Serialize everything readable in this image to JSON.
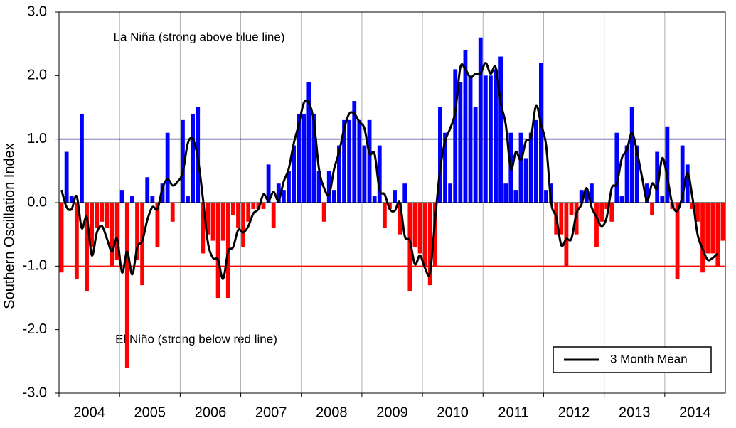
{
  "chart_data": {
    "type": "bar",
    "y_label": "Southern Oscillation Index",
    "annotations": [
      "La Niña (strong above blue line)",
      "El Niño (strong below red line)"
    ],
    "xlim": [
      2004,
      2015
    ],
    "xticks": [
      2004,
      2005,
      2006,
      2007,
      2008,
      2009,
      2010,
      2011,
      2012,
      2013,
      2014
    ],
    "ylim": [
      -3,
      3
    ],
    "yticks": [
      {
        "value": -3,
        "label": "-3.0"
      },
      {
        "value": -2,
        "label": "-2.0"
      },
      {
        "value": -1,
        "label": "-1.0"
      },
      {
        "value": 0,
        "label": "0.0"
      },
      {
        "value": 1,
        "label": "1.0"
      },
      {
        "value": 2,
        "label": "2.0"
      },
      {
        "value": 3,
        "label": "3.0"
      }
    ],
    "grid": true,
    "positive_color": "#0000ff",
    "negative_color": "#ff0000",
    "reference_lines": [
      {
        "value": 1,
        "color": "#00008b"
      },
      {
        "value": -1,
        "color": "#ff0000"
      }
    ],
    "values": [
      -1.1,
      0.8,
      0.1,
      -1.2,
      1.4,
      -1.4,
      -0.7,
      -0.4,
      -0.3,
      -0.4,
      -1.0,
      -0.9,
      0.2,
      -2.6,
      0.1,
      -0.9,
      -1.3,
      0.4,
      0.1,
      -0.7,
      0.3,
      1.1,
      -0.3,
      0.0,
      1.3,
      0.1,
      1.4,
      1.5,
      -0.8,
      -0.5,
      -0.6,
      -1.5,
      -0.6,
      -1.5,
      -0.2,
      -0.4,
      -0.7,
      -0.3,
      -0.1,
      -0.1,
      -0.1,
      0.6,
      -0.4,
      0.3,
      0.2,
      0.5,
      0.9,
      1.4,
      1.4,
      1.9,
      1.4,
      0.5,
      -0.3,
      0.5,
      0.2,
      0.9,
      1.3,
      1.3,
      1.6,
      1.3,
      0.9,
      1.3,
      0.1,
      0.9,
      -0.4,
      -0.1,
      0.2,
      -0.5,
      0.3,
      -1.4,
      -0.7,
      -0.8,
      -1.0,
      -1.3,
      -1.0,
      1.5,
      1.1,
      0.3,
      2.1,
      1.9,
      2.4,
      2.0,
      1.5,
      2.6,
      2.0,
      2.0,
      2.1,
      2.3,
      0.3,
      1.1,
      0.2,
      1.1,
      0.7,
      1.1,
      1.3,
      2.2,
      0.2,
      0.3,
      -0.5,
      -0.5,
      -1.0,
      -0.2,
      -0.5,
      0.2,
      0.2,
      0.3,
      -0.7,
      -0.3,
      -0.1,
      -0.3,
      1.1,
      0.1,
      0.9,
      1.5,
      0.9,
      0.0,
      0.3,
      -0.2,
      0.8,
      0.1,
      1.2,
      -0.1,
      -1.2,
      0.9,
      0.6,
      -0.1,
      -0.3,
      -1.1,
      -0.8,
      -0.8,
      -1.0,
      -0.6
    ],
    "series": [
      {
        "name": "3 Month Mean",
        "type": "line",
        "color": "#000000",
        "values": [
          0.2,
          -0.07,
          -0.1,
          0.1,
          -0.4,
          -0.23,
          -0.83,
          -0.47,
          -0.37,
          -0.57,
          -0.77,
          -0.57,
          -1.1,
          -0.77,
          -1.13,
          -0.7,
          -0.6,
          -0.27,
          -0.07,
          -0.1,
          0.23,
          0.37,
          0.27,
          0.33,
          0.47,
          0.93,
          1.0,
          0.7,
          0.07,
          -0.63,
          -0.87,
          -0.9,
          -1.2,
          -0.77,
          -0.7,
          -0.43,
          -0.47,
          -0.37,
          -0.17,
          -0.1,
          0.13,
          0.03,
          0.17,
          0.03,
          0.33,
          0.53,
          0.93,
          1.23,
          1.57,
          1.57,
          1.27,
          0.53,
          0.23,
          0.13,
          0.53,
          0.8,
          1.17,
          1.4,
          1.4,
          1.27,
          1.17,
          0.77,
          0.77,
          0.2,
          0.13,
          -0.1,
          -0.13,
          0.0,
          -0.53,
          -0.6,
          -0.97,
          -0.83,
          -1.03,
          -1.1,
          -0.27,
          0.53,
          0.97,
          1.17,
          1.43,
          2.13,
          2.1,
          1.97,
          2.03,
          2.03,
          2.2,
          2.03,
          2.13,
          1.57,
          1.23,
          0.53,
          0.8,
          0.67,
          0.97,
          1.03,
          1.53,
          1.23,
          0.9,
          0.0,
          -0.23,
          -0.67,
          -0.57,
          -0.57,
          -0.17,
          -0.03,
          0.23,
          -0.07,
          -0.23,
          -0.37,
          -0.23,
          0.23,
          0.3,
          0.7,
          0.83,
          1.1,
          0.8,
          0.4,
          0.03,
          0.3,
          0.23,
          0.7,
          0.4,
          -0.03,
          -0.13,
          0.1,
          0.47,
          0.07,
          -0.5,
          -0.73,
          -0.9,
          -0.87,
          -0.8,
          null
        ]
      }
    ],
    "legend": "lower right"
  }
}
